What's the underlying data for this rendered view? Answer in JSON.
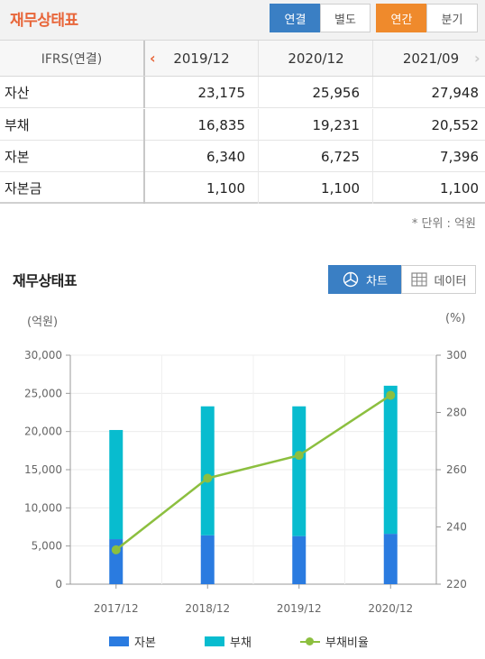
{
  "header": {
    "title": "재무상태표",
    "tabs_type": [
      "연결",
      "별도"
    ],
    "tabs_period": [
      "연간",
      "분기"
    ]
  },
  "table": {
    "label_header": "IFRS(연결)",
    "columns": [
      "2019/12",
      "2020/12",
      "2021/09"
    ],
    "rows": [
      {
        "name": "자산",
        "values": [
          "23,175",
          "25,956",
          "27,948"
        ]
      },
      {
        "name": "부채",
        "values": [
          "16,835",
          "19,231",
          "20,552"
        ]
      },
      {
        "name": "자본",
        "values": [
          "6,340",
          "6,725",
          "7,396"
        ]
      },
      {
        "name": "자본금",
        "values": [
          "1,100",
          "1,100",
          "1,100"
        ]
      }
    ],
    "unit": "* 단위 : 억원"
  },
  "chart_section": {
    "title": "재무상태표",
    "chart_button": "차트",
    "data_button": "데이터",
    "y_left_unit": "(억원)",
    "y_right_unit": "(%)"
  },
  "colors": {
    "equity": "#2a7be0",
    "liability": "#08bccf",
    "ratio": "#8cbf3f",
    "accent_orange": "#e8663a",
    "blue_button": "#3a7fc4"
  },
  "chart_data": {
    "type": "bar",
    "stacked": true,
    "categories": [
      "2017/12",
      "2018/12",
      "2019/12",
      "2020/12"
    ],
    "series": [
      {
        "name": "자본",
        "axis": "left",
        "values": [
          5900,
          6400,
          6300,
          6600
        ]
      },
      {
        "name": "부채",
        "axis": "left",
        "values": [
          14300,
          16900,
          17000,
          19400
        ]
      },
      {
        "name": "부채비율",
        "axis": "right",
        "type": "line",
        "values": [
          232,
          257,
          265,
          286
        ]
      }
    ],
    "y_left": {
      "min": 0,
      "max": 30000,
      "ticks": [
        "0",
        "5,000",
        "10,000",
        "15,000",
        "20,000",
        "25,000",
        "30,000"
      ]
    },
    "y_right": {
      "min": 220,
      "max": 300,
      "ticks": [
        "220",
        "240",
        "260",
        "280",
        "300"
      ]
    },
    "grid": true,
    "legend_position": "bottom"
  }
}
